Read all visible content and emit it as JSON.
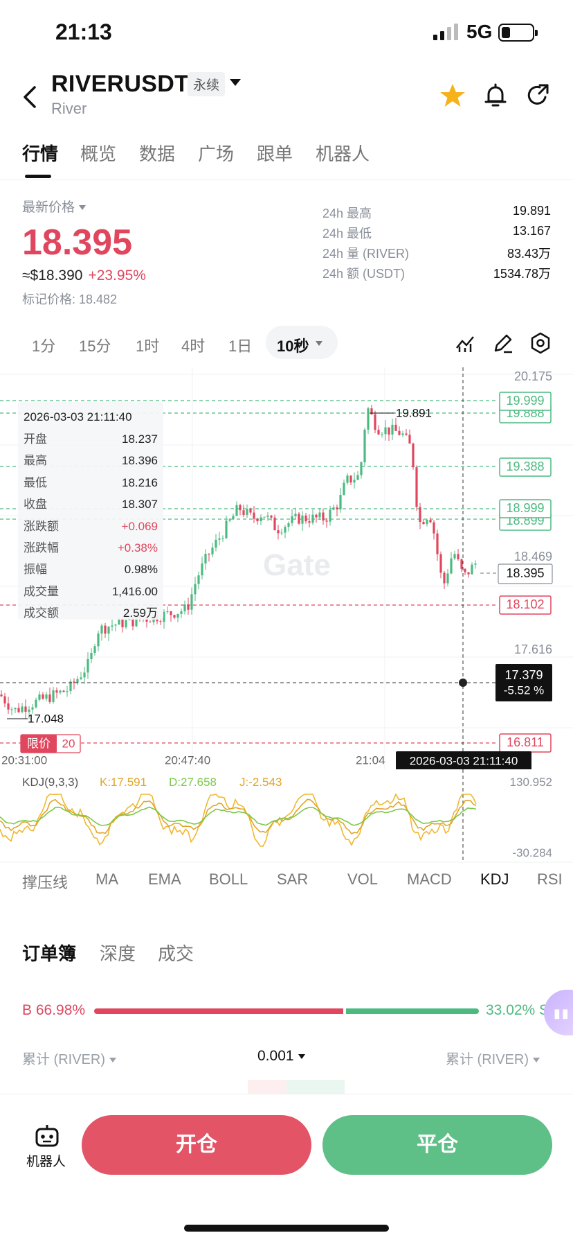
{
  "status": {
    "time": "21:13",
    "network": "5G"
  },
  "header": {
    "symbol": "RIVERUSDT",
    "perp_tag": "永续",
    "name": "River"
  },
  "tabs": [
    {
      "label": "行情"
    },
    {
      "label": "概览"
    },
    {
      "label": "数据"
    },
    {
      "label": "广场"
    },
    {
      "label": "跟单"
    },
    {
      "label": "机器人"
    }
  ],
  "price": {
    "latest_label": "最新价格",
    "last": "18.395",
    "usd": "≈$18.390",
    "change_pct": "+23.95%",
    "mark": "标记价格: 18.482"
  },
  "stats": [
    {
      "label": "24h  最高",
      "value": "19.891"
    },
    {
      "label": "24h  最低",
      "value": "13.167"
    },
    {
      "label": "24h  量 (RIVER)",
      "value": "83.43万"
    },
    {
      "label": "24h  额 (USDT)",
      "value": "1534.78万"
    }
  ],
  "intervals": [
    {
      "label": "1分"
    },
    {
      "label": "15分"
    },
    {
      "label": "1时"
    },
    {
      "label": "4时"
    },
    {
      "label": "1日"
    }
  ],
  "active_interval": "10秒",
  "chart": {
    "axis_prices": [
      "20.175",
      "18.469",
      "17.616"
    ],
    "tag_prices": [
      "19.999",
      "19.888",
      "19.388",
      "18.999",
      "18.899",
      "18.395",
      "18.102",
      "16.811"
    ],
    "crosshair_price": "17.379",
    "crosshair_pct": "-5.52 %",
    "high_label": "19.891",
    "low_label": "17.048",
    "time_labels": [
      "20:31:00",
      "20:47:40",
      "21:04"
    ],
    "crosshair_time": "2026-03-03 21:11:40",
    "order_label": "限价",
    "order_qty": "20",
    "watermark": "Gate",
    "kdj": {
      "title": "KDJ(9,3,3)",
      "k": "K:17.591",
      "d": "D:27.658",
      "j": "J:-2.543",
      "max": "130.952",
      "min": "-30.284"
    },
    "colors": {
      "up": "#4cba80",
      "down": "#e0465e",
      "k_line": "#e0a52a",
      "d_line": "#7cc84a",
      "j_line": "#f0b830"
    }
  },
  "ohlc": {
    "time": "2026-03-03 21:11:40",
    "rows": [
      {
        "k": "开盘",
        "v": "18.237"
      },
      {
        "k": "最高",
        "v": "18.396"
      },
      {
        "k": "最低",
        "v": "18.216"
      },
      {
        "k": "收盘",
        "v": "18.307"
      },
      {
        "k": "涨跌额",
        "v": "+0.069"
      },
      {
        "k": "涨跌幅",
        "v": "+0.38%"
      },
      {
        "k": "振幅",
        "v": "0.98%"
      },
      {
        "k": "成交量",
        "v": "1,416.00"
      },
      {
        "k": "成交额",
        "v": "2.59万"
      }
    ]
  },
  "indicators": [
    "撑压线",
    "MA",
    "EMA",
    "BOLL",
    "SAR",
    "VOL",
    "MACD",
    "KDJ",
    "RSI"
  ],
  "orderbook": {
    "tabs": [
      "订单簿",
      "深度",
      "成交"
    ],
    "buy_ratio": "B 66.98%",
    "sell_ratio": "33.02% S",
    "col_left": "累计 (RIVER)",
    "precision": "0.001",
    "col_right": "累计 (RIVER)"
  },
  "bottom": {
    "bot_label": "机器人",
    "open": "开仓",
    "close": "平仓"
  }
}
